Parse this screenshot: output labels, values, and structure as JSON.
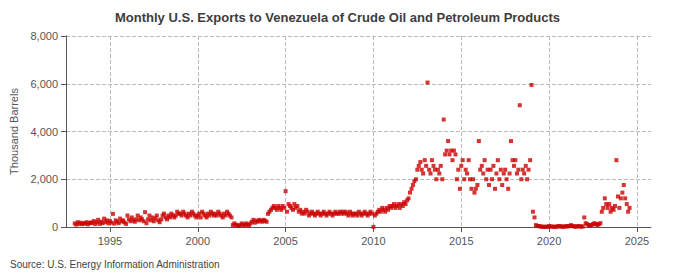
{
  "chart_data": {
    "type": "scatter",
    "title": "Monthly U.S. Exports to Venezuela of Crude Oil and Petroleum Products",
    "ylabel": "Thousand Barrels",
    "annotation": "Source: U.S. Energy Information Administration",
    "color": "#CC0000",
    "marker": "square",
    "grid": true,
    "xlim": [
      1992.5,
      2025.8
    ],
    "xticks": [
      1995,
      2000,
      2005,
      2010,
      2015,
      2020,
      2025
    ],
    "ylim": [
      0,
      8000
    ],
    "yticks": [
      0,
      {
        "value": 2000,
        "label": "2,000"
      },
      {
        "value": 4000,
        "label": "4,000"
      },
      {
        "value": 6000,
        "label": "6,000"
      },
      {
        "value": 8000,
        "label": "8,000"
      }
    ],
    "x": [
      1993.0,
      1993.08,
      1993.17,
      1993.25,
      1993.33,
      1993.42,
      1993.5,
      1993.58,
      1993.67,
      1993.75,
      1993.83,
      1993.92,
      1994.0,
      1994.08,
      1994.17,
      1994.25,
      1994.33,
      1994.42,
      1994.5,
      1994.58,
      1994.67,
      1994.75,
      1994.83,
      1994.92,
      1995.0,
      1995.08,
      1995.17,
      1995.25,
      1995.33,
      1995.42,
      1995.5,
      1995.58,
      1995.67,
      1995.75,
      1995.83,
      1995.92,
      1996.0,
      1996.08,
      1996.17,
      1996.25,
      1996.33,
      1996.42,
      1996.5,
      1996.58,
      1996.67,
      1996.75,
      1996.83,
      1996.92,
      1997.0,
      1997.08,
      1997.17,
      1997.25,
      1997.33,
      1997.42,
      1997.5,
      1997.58,
      1997.67,
      1997.75,
      1997.83,
      1997.92,
      1998.0,
      1998.08,
      1998.17,
      1998.25,
      1998.33,
      1998.42,
      1998.5,
      1998.58,
      1998.67,
      1998.75,
      1998.83,
      1998.92,
      1999.0,
      1999.08,
      1999.17,
      1999.25,
      1999.33,
      1999.42,
      1999.5,
      1999.58,
      1999.67,
      1999.75,
      1999.83,
      1999.92,
      2000.0,
      2000.08,
      2000.17,
      2000.25,
      2000.33,
      2000.42,
      2000.5,
      2000.58,
      2000.67,
      2000.75,
      2000.83,
      2000.92,
      2001.0,
      2001.08,
      2001.17,
      2001.25,
      2001.33,
      2001.42,
      2001.5,
      2001.58,
      2001.67,
      2001.75,
      2001.83,
      2001.92,
      2002.0,
      2002.08,
      2002.17,
      2002.25,
      2002.33,
      2002.42,
      2002.5,
      2002.58,
      2002.67,
      2002.75,
      2002.83,
      2002.92,
      2003.0,
      2003.08,
      2003.17,
      2003.25,
      2003.33,
      2003.42,
      2003.5,
      2003.58,
      2003.67,
      2003.75,
      2003.83,
      2003.92,
      2004.0,
      2004.08,
      2004.17,
      2004.25,
      2004.33,
      2004.42,
      2004.5,
      2004.58,
      2004.67,
      2004.75,
      2004.83,
      2004.92,
      2005.0,
      2005.08,
      2005.17,
      2005.25,
      2005.33,
      2005.42,
      2005.5,
      2005.58,
      2005.67,
      2005.75,
      2005.83,
      2005.92,
      2006.0,
      2006.08,
      2006.17,
      2006.25,
      2006.33,
      2006.42,
      2006.5,
      2006.58,
      2006.67,
      2006.75,
      2006.83,
      2006.92,
      2007.0,
      2007.08,
      2007.17,
      2007.25,
      2007.33,
      2007.42,
      2007.5,
      2007.58,
      2007.67,
      2007.75,
      2007.83,
      2007.92,
      2008.0,
      2008.08,
      2008.17,
      2008.25,
      2008.33,
      2008.42,
      2008.5,
      2008.58,
      2008.67,
      2008.75,
      2008.83,
      2008.92,
      2009.0,
      2009.08,
      2009.17,
      2009.25,
      2009.33,
      2009.42,
      2009.5,
      2009.58,
      2009.67,
      2009.75,
      2009.83,
      2009.92,
      2010.0,
      2010.08,
      2010.17,
      2010.25,
      2010.33,
      2010.42,
      2010.5,
      2010.58,
      2010.67,
      2010.75,
      2010.83,
      2010.92,
      2011.0,
      2011.08,
      2011.17,
      2011.25,
      2011.33,
      2011.42,
      2011.5,
      2011.58,
      2011.67,
      2011.75,
      2011.83,
      2011.92,
      2012.0,
      2012.08,
      2012.17,
      2012.25,
      2012.33,
      2012.42,
      2012.5,
      2012.58,
      2012.67,
      2012.75,
      2012.83,
      2012.92,
      2013.0,
      2013.08,
      2013.17,
      2013.25,
      2013.33,
      2013.42,
      2013.5,
      2013.58,
      2013.67,
      2013.75,
      2013.83,
      2013.92,
      2014.0,
      2014.08,
      2014.17,
      2014.25,
      2014.33,
      2014.42,
      2014.5,
      2014.58,
      2014.67,
      2014.75,
      2014.83,
      2014.92,
      2015.0,
      2015.08,
      2015.17,
      2015.25,
      2015.33,
      2015.42,
      2015.5,
      2015.58,
      2015.67,
      2015.75,
      2015.83,
      2015.92,
      2016.0,
      2016.08,
      2016.17,
      2016.25,
      2016.33,
      2016.42,
      2016.5,
      2016.58,
      2016.67,
      2016.75,
      2016.83,
      2016.92,
      2017.0,
      2017.08,
      2017.17,
      2017.25,
      2017.33,
      2017.42,
      2017.5,
      2017.58,
      2017.67,
      2017.75,
      2017.83,
      2017.92,
      2018.0,
      2018.08,
      2018.17,
      2018.25,
      2018.33,
      2018.42,
      2018.5,
      2018.58,
      2018.67,
      2018.75,
      2018.83,
      2018.92,
      2019.0,
      2019.08,
      2019.17,
      2019.25,
      2019.33,
      2019.42,
      2019.5,
      2019.58,
      2019.67,
      2019.75,
      2019.83,
      2019.92,
      2020.0,
      2020.08,
      2020.17,
      2020.25,
      2020.33,
      2020.42,
      2020.5,
      2020.58,
      2020.67,
      2020.75,
      2020.83,
      2020.92,
      2021.0,
      2021.08,
      2021.17,
      2021.25,
      2021.33,
      2021.42,
      2021.5,
      2021.58,
      2021.67,
      2021.75,
      2021.83,
      2021.92,
      2022.0,
      2022.08,
      2022.17,
      2022.25,
      2022.33,
      2022.42,
      2022.5,
      2022.58,
      2022.67,
      2022.75,
      2022.83,
      2022.92,
      2023.0,
      2023.08,
      2023.17,
      2023.25,
      2023.33,
      2023.42,
      2023.5,
      2023.58,
      2023.67,
      2023.75,
      2023.83,
      2023.92,
      2024.0,
      2024.08,
      2024.17,
      2024.25,
      2024.33,
      2024.42,
      2024.5,
      2024.58
    ],
    "values": [
      150,
      100,
      200,
      130,
      180,
      120,
      160,
      140,
      200,
      110,
      170,
      190,
      160,
      250,
      120,
      200,
      300,
      130,
      220,
      160,
      350,
      200,
      280,
      150,
      250,
      180,
      550,
      140,
      280,
      220,
      160,
      350,
      230,
      280,
      190,
      130,
      480,
      320,
      240,
      400,
      280,
      220,
      320,
      480,
      280,
      400,
      320,
      240,
      620,
      160,
      320,
      480,
      280,
      400,
      240,
      360,
      480,
      280,
      200,
      320,
      480,
      560,
      400,
      320,
      480,
      400,
      560,
      480,
      400,
      480,
      640,
      560,
      560,
      480,
      640,
      560,
      480,
      400,
      560,
      480,
      640,
      560,
      480,
      400,
      480,
      560,
      400,
      640,
      560,
      480,
      400,
      560,
      480,
      640,
      560,
      480,
      560,
      480,
      640,
      560,
      480,
      400,
      560,
      480,
      640,
      560,
      480,
      400,
      80,
      150,
      100,
      70,
      40,
      80,
      150,
      100,
      70,
      150,
      100,
      70,
      150,
      220,
      300,
      180,
      260,
      220,
      300,
      260,
      220,
      300,
      260,
      220,
      550,
      640,
      720,
      800,
      880,
      800,
      720,
      880,
      800,
      720,
      880,
      800,
      1500,
      640,
      960,
      880,
      800,
      720,
      960,
      800,
      880,
      640,
      720,
      560,
      640,
      560,
      720,
      640,
      480,
      560,
      640,
      560,
      480,
      560,
      640,
      560,
      480,
      560,
      640,
      560,
      480,
      560,
      640,
      560,
      480,
      560,
      640,
      560,
      560,
      640,
      560,
      640,
      560,
      640,
      560,
      480,
      640,
      560,
      480,
      560,
      560,
      480,
      640,
      560,
      480,
      560,
      640,
      560,
      480,
      560,
      640,
      560,
      5,
      480,
      560,
      640,
      720,
      640,
      800,
      720,
      640,
      800,
      720,
      880,
      800,
      880,
      960,
      800,
      880,
      960,
      800,
      960,
      880,
      1040,
      960,
      1120,
      1200,
      1440,
      1600,
      1760,
      1920,
      2000,
      2400,
      2560,
      2720,
      2400,
      2240,
      2800,
      2560,
      6050,
      2400,
      2240,
      2800,
      2560,
      2400,
      2000,
      2400,
      2240,
      2560,
      2000,
      4500,
      3040,
      3200,
      3600,
      3040,
      3200,
      2800,
      3200,
      3040,
      2000,
      2400,
      1600,
      2560,
      2800,
      2000,
      2400,
      2240,
      2800,
      2000,
      1600,
      2000,
      1440,
      1600,
      1760,
      3600,
      2400,
      2560,
      2240,
      2800,
      2000,
      2400,
      1760,
      2400,
      2000,
      2560,
      1600,
      2240,
      2800,
      2000,
      2400,
      1760,
      2240,
      2400,
      2000,
      1600,
      2240,
      3600,
      2800,
      2560,
      2800,
      2240,
      2400,
      5100,
      2000,
      2400,
      2240,
      2560,
      2000,
      2400,
      2800,
      5950,
      640,
      400,
      80,
      40,
      40,
      20,
      15,
      8,
      8,
      8,
      8,
      40,
      25,
      15,
      8,
      8,
      15,
      25,
      40,
      25,
      15,
      8,
      25,
      40,
      25,
      40,
      80,
      40,
      25,
      15,
      25,
      40,
      25,
      15,
      25,
      400,
      160,
      120,
      80,
      64,
      80,
      120,
      160,
      120,
      80,
      120,
      160,
      640,
      800,
      1200,
      960,
      800,
      960,
      640,
      800,
      720,
      880,
      2800,
      1280,
      800,
      1200,
      1440,
      1760,
      1200,
      960,
      640,
      800
    ]
  }
}
